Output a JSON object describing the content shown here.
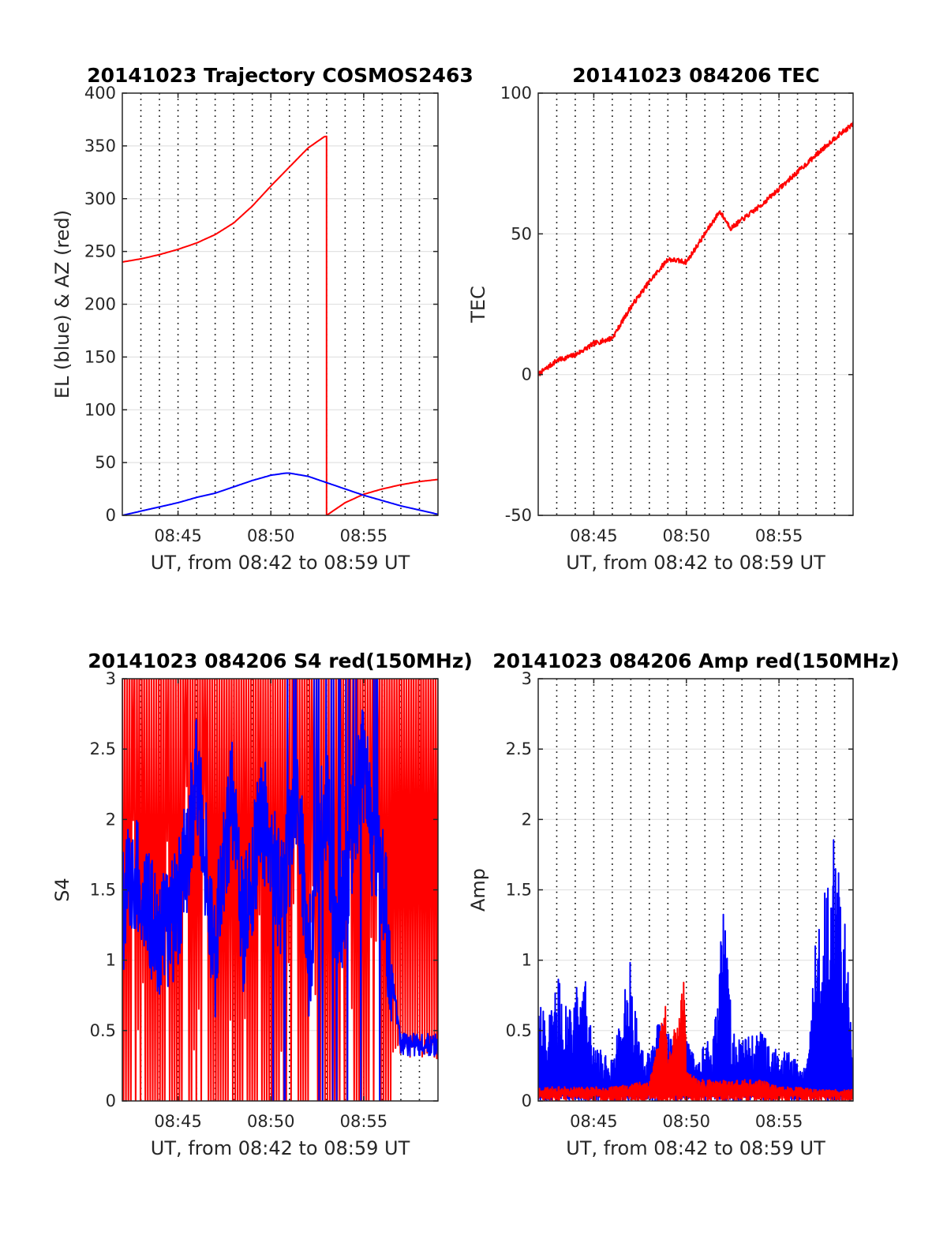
{
  "figure": {
    "colors": {
      "az": "#ff0000",
      "el": "#0000ff",
      "tec": "#ff0000",
      "red_150": "#ff0000",
      "blue": "#0000ff"
    },
    "panels": [
      {
        "id": "trajectory",
        "title": "20141023 Trajectory COSMOS2463",
        "ylabel": "EL (blue) & AZ (red)",
        "xlabel": "UT, from 08:42 to 08:59 UT",
        "ylim": [
          0,
          400
        ],
        "yticks": [
          "0",
          "50",
          "100",
          "150",
          "200",
          "250",
          "300",
          "350",
          "400"
        ]
      },
      {
        "id": "tec",
        "title": "20141023 084206 TEC",
        "ylabel": "TEC",
        "xlabel": "UT, from 08:42 to 08:59 UT",
        "ylim": [
          -50,
          100
        ],
        "yticks": [
          "-50",
          "0",
          "50",
          "100"
        ]
      },
      {
        "id": "s4",
        "title": "20141023 084206 S4 red(150MHz)",
        "ylabel": "S4",
        "xlabel": "UT, from 08:42 to 08:59 UT",
        "ylim": [
          0,
          3
        ],
        "yticks": [
          "0",
          "0.5",
          "1",
          "1.5",
          "2",
          "2.5",
          "3"
        ]
      },
      {
        "id": "amp",
        "title": "20141023 084206 Amp red(150MHz)",
        "ylabel": "Amp",
        "xlabel": "UT, from 08:42 to 08:59 UT",
        "ylim": [
          0,
          3
        ],
        "yticks": [
          "0",
          "0.5",
          "1",
          "1.5",
          "2",
          "2.5",
          "3"
        ]
      }
    ]
  },
  "chart_data": [
    {
      "type": "line",
      "title": "20141023 Trajectory COSMOS2463",
      "xlabel": "UT, from 08:42 to 08:59 UT",
      "ylabel": "EL (blue) & AZ (red)",
      "xlim": [
        "08:42",
        "08:59"
      ],
      "xticks": [
        "08:45",
        "08:50",
        "08:55"
      ],
      "ylim": [
        0,
        400
      ],
      "grid": true,
      "series": [
        {
          "color": "#ff0000",
          "x": [
            "08:42",
            "08:43",
            "08:44",
            "08:45",
            "08:46",
            "08:47",
            "08:48",
            "08:49",
            "08:50",
            "08:51",
            "08:52",
            "08:52:54",
            "08:53:00",
            "08:54",
            "08:55",
            "08:56",
            "08:57",
            "08:58",
            "08:59"
          ],
          "values": [
            240,
            243,
            247,
            252,
            258,
            266,
            277,
            293,
            312,
            330,
            348,
            359,
            0,
            12,
            20,
            25,
            29,
            32,
            34
          ]
        },
        {
          "color": "#0000ff",
          "x": [
            "08:42",
            "08:43",
            "08:44",
            "08:45",
            "08:46",
            "08:47",
            "08:48",
            "08:49",
            "08:50",
            "08:50:48",
            "08:51",
            "08:52",
            "08:53",
            "08:54",
            "08:55",
            "08:56",
            "08:57",
            "08:58",
            "08:59"
          ],
          "values": [
            0,
            4,
            8,
            12,
            17,
            21,
            27,
            33,
            38,
            40,
            40,
            37,
            31,
            25,
            19,
            14,
            9,
            5,
            1
          ]
        }
      ]
    },
    {
      "type": "line",
      "title": "20141023 084206 TEC",
      "xlabel": "UT, from 08:42 to 08:59 UT",
      "ylabel": "TEC",
      "xlim": [
        "08:42",
        "08:59"
      ],
      "xticks": [
        "08:45",
        "08:50",
        "08:55"
      ],
      "ylim": [
        -50,
        100
      ],
      "grid": true,
      "series": [
        {
          "color": "#ff0000",
          "x": [
            "08:42",
            "08:43",
            "08:44",
            "08:45",
            "08:46",
            "08:47",
            "08:48",
            "08:49",
            "08:50",
            "08:51",
            "08:51:48",
            "08:52:24",
            "08:53",
            "08:54",
            "08:55",
            "08:56",
            "08:57",
            "08:58",
            "08:59"
          ],
          "values": [
            0,
            5,
            7,
            11,
            13,
            24,
            33,
            41,
            40,
            50,
            58,
            52,
            55,
            60,
            66,
            72,
            78,
            84,
            89
          ]
        }
      ]
    },
    {
      "type": "line",
      "title": "20141023 084206 S4 red(150MHz)",
      "xlabel": "UT, from 08:42 to 08:59 UT",
      "ylabel": "S4",
      "xlim": [
        "08:42",
        "08:59"
      ],
      "xticks": [
        "08:45",
        "08:50",
        "08:55"
      ],
      "ylim": [
        0,
        3
      ],
      "grid": true,
      "series": [
        {
          "color": "#ff0000",
          "x": [
            "08:42",
            "08:42:30",
            "08:43",
            "08:43:30",
            "08:44",
            "08:44:30",
            "08:45",
            "08:45:30",
            "08:46",
            "08:46:30",
            "08:47",
            "08:47:30",
            "08:48",
            "08:48:30",
            "08:49",
            "08:49:30",
            "08:50",
            "08:50:30",
            "08:51",
            "08:51:30",
            "08:52",
            "08:52:30",
            "08:53",
            "08:53:30",
            "08:54",
            "08:54:30",
            "08:55",
            "08:55:30",
            "08:56",
            "08:56:30",
            "08:57",
            "08:57:30",
            "08:58",
            "08:58:30",
            "08:59"
          ],
          "values": [
            3,
            3,
            3,
            3,
            3,
            3,
            3,
            3,
            3,
            3,
            3,
            3,
            3,
            3,
            3,
            3,
            3,
            3,
            3,
            3,
            3,
            3,
            3,
            3,
            3,
            3,
            3,
            3,
            3,
            3,
            3,
            3,
            3,
            3,
            3
          ]
        },
        {
          "color": "#0000ff",
          "x": [
            "08:42",
            "08:42:30",
            "08:43",
            "08:43:30",
            "08:44",
            "08:44:30",
            "08:45",
            "08:45:30",
            "08:46",
            "08:46:30",
            "08:47",
            "08:47:30",
            "08:48",
            "08:48:30",
            "08:49",
            "08:49:30",
            "08:50",
            "08:50:30",
            "08:51",
            "08:51:30",
            "08:52",
            "08:52:30",
            "08:53",
            "08:53:30",
            "08:54",
            "08:54:30",
            "08:55",
            "08:55:30",
            "08:56",
            "08:56:30",
            "08:57",
            "08:57:30",
            "08:58",
            "08:58:30",
            "08:59"
          ],
          "values": [
            1.3,
            1.6,
            1.5,
            1.3,
            1.2,
            1.2,
            1.4,
            1.8,
            2.3,
            1.7,
            1.0,
            1.8,
            2.2,
            1.2,
            1.6,
            2.0,
            1.9,
            1.4,
            1.8,
            2.2,
            0.9,
            1.7,
            2.2,
            1.0,
            1.5,
            2.0,
            2.4,
            1.8,
            1.6,
            0.9,
            0.4,
            0.4,
            0.4,
            0.4,
            0.4
          ]
        }
      ]
    },
    {
      "type": "line",
      "title": "20141023 084206 Amp red(150MHz)",
      "xlabel": "UT, from 08:42 to 08:59 UT",
      "ylabel": "Amp",
      "xlim": [
        "08:42",
        "08:59"
      ],
      "xticks": [
        "08:45",
        "08:50",
        "08:55"
      ],
      "ylim": [
        0,
        3
      ],
      "grid": true,
      "series": [
        {
          "color": "#ff0000",
          "x": [
            "08:42",
            "08:44",
            "08:46",
            "08:48",
            "08:48:54",
            "08:49",
            "08:49:54",
            "08:50",
            "08:51",
            "08:52",
            "08:53",
            "08:54",
            "08:55",
            "08:56",
            "08:57",
            "08:58",
            "08:59"
          ],
          "values": [
            0.1,
            0.1,
            0.1,
            0.15,
            0.72,
            0.3,
            0.93,
            0.2,
            0.15,
            0.15,
            0.15,
            0.15,
            0.1,
            0.1,
            0.08,
            0.08,
            0.08
          ]
        },
        {
          "color": "#0000ff",
          "x": [
            "08:42",
            "08:42:30",
            "08:43",
            "08:43:30",
            "08:44",
            "08:44:30",
            "08:45",
            "08:45:30",
            "08:46",
            "08:46:30",
            "08:47",
            "08:47:30",
            "08:48",
            "08:48:30",
            "08:49",
            "08:49:30",
            "08:50",
            "08:50:30",
            "08:51",
            "08:51:30",
            "08:52",
            "08:52:30",
            "08:53",
            "08:53:30",
            "08:54",
            "08:54:30",
            "08:55",
            "08:55:30",
            "08:56",
            "08:56:30",
            "08:57",
            "08:57:30",
            "08:58",
            "08:58:30",
            "08:59"
          ],
          "values": [
            0.7,
            0.6,
            0.9,
            0.7,
            0.8,
            0.9,
            0.4,
            0.35,
            0.3,
            0.7,
            1.05,
            0.4,
            0.35,
            0.6,
            0.5,
            0.4,
            0.45,
            0.3,
            0.4,
            0.5,
            1.4,
            0.5,
            0.45,
            0.5,
            0.5,
            0.4,
            0.35,
            0.35,
            0.3,
            0.25,
            1.2,
            1.5,
            1.9,
            1.5,
            0.3
          ]
        }
      ]
    }
  ]
}
